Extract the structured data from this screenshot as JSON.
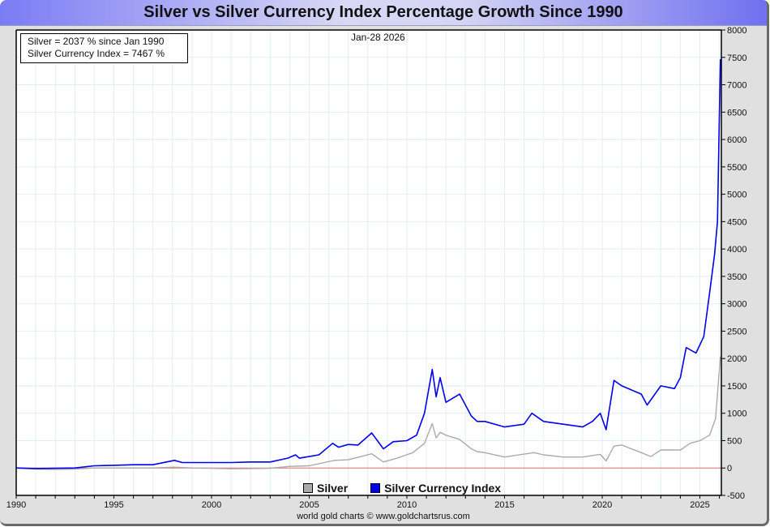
{
  "header": {
    "title": "Silver vs Silver Currency Index Percentage Growth Since 1990"
  },
  "info_box": {
    "line1": "Silver = 2037 % since Jan 1990",
    "line2": "Silver Currency Index = 7467 %"
  },
  "date_label": "Jan-28  2026",
  "credit": "world gold charts © www.goldchartsrus.com",
  "colors": {
    "silver": "#aaaaaa",
    "index": "#0000ee",
    "zero_line": "#e07070",
    "grid": "#e2eef8"
  },
  "chart_data": {
    "type": "line",
    "title": "Silver vs Silver Currency Index Percentage Growth Since 1990",
    "xlabel": "",
    "ylabel": "",
    "xlim": [
      1990,
      2026.1
    ],
    "ylim": [
      -500,
      8000
    ],
    "grid": true,
    "legend_position": "bottom-center",
    "x_ticks": [
      "1990",
      "1995",
      "2000",
      "2005",
      "2010",
      "2015",
      "2020",
      "2025"
    ],
    "y_ticks": [
      "-500",
      "0",
      "500",
      "1000",
      "1500",
      "2000",
      "2500",
      "3000",
      "3500",
      "4000",
      "4500",
      "5000",
      "5500",
      "6000",
      "6500",
      "7000",
      "7500",
      "8000"
    ],
    "series": [
      {
        "name": "Silver",
        "color": "#aaaaaa",
        "points": [
          [
            1990,
            0
          ],
          [
            1991,
            -20
          ],
          [
            1992,
            -25
          ],
          [
            1993,
            -20
          ],
          [
            1994,
            0
          ],
          [
            1995,
            0
          ],
          [
            1996,
            0
          ],
          [
            1997,
            0
          ],
          [
            1998.1,
            15
          ],
          [
            1999,
            0
          ],
          [
            2000,
            -5
          ],
          [
            2001,
            -15
          ],
          [
            2002,
            -10
          ],
          [
            2003,
            -5
          ],
          [
            2004,
            30
          ],
          [
            2005,
            40
          ],
          [
            2006.3,
            140
          ],
          [
            2007,
            150
          ],
          [
            2008.2,
            260
          ],
          [
            2008.8,
            110
          ],
          [
            2009.5,
            180
          ],
          [
            2010.3,
            280
          ],
          [
            2010.9,
            450
          ],
          [
            2011.3,
            810
          ],
          [
            2011.5,
            550
          ],
          [
            2011.7,
            650
          ],
          [
            2012,
            600
          ],
          [
            2012.7,
            520
          ],
          [
            2013.3,
            350
          ],
          [
            2013.6,
            300
          ],
          [
            2014,
            280
          ],
          [
            2015,
            200
          ],
          [
            2016.5,
            280
          ],
          [
            2017,
            240
          ],
          [
            2018,
            200
          ],
          [
            2019,
            200
          ],
          [
            2019.9,
            250
          ],
          [
            2020.2,
            130
          ],
          [
            2020.6,
            400
          ],
          [
            2021,
            420
          ],
          [
            2022,
            280
          ],
          [
            2022.5,
            210
          ],
          [
            2023,
            330
          ],
          [
            2024,
            330
          ],
          [
            2024.5,
            450
          ],
          [
            2025,
            500
          ],
          [
            2025.5,
            600
          ],
          [
            2025.8,
            900
          ],
          [
            2026.05,
            2037
          ]
        ]
      },
      {
        "name": "Silver Currency Index",
        "color": "#0000ee",
        "points": [
          [
            1990,
            0
          ],
          [
            1991,
            -10
          ],
          [
            1992,
            -5
          ],
          [
            1993,
            0
          ],
          [
            1994,
            40
          ],
          [
            1995,
            50
          ],
          [
            1996,
            60
          ],
          [
            1997,
            60
          ],
          [
            1998.1,
            140
          ],
          [
            1998.5,
            100
          ],
          [
            1999,
            100
          ],
          [
            2000,
            100
          ],
          [
            2001,
            100
          ],
          [
            2002,
            110
          ],
          [
            2003,
            110
          ],
          [
            2003.9,
            180
          ],
          [
            2004.3,
            240
          ],
          [
            2004.5,
            180
          ],
          [
            2005,
            210
          ],
          [
            2005.5,
            240
          ],
          [
            2006.2,
            450
          ],
          [
            2006.5,
            380
          ],
          [
            2007,
            430
          ],
          [
            2007.5,
            420
          ],
          [
            2008.2,
            640
          ],
          [
            2008.8,
            350
          ],
          [
            2009.3,
            480
          ],
          [
            2010,
            500
          ],
          [
            2010.5,
            600
          ],
          [
            2010.9,
            1000
          ],
          [
            2011.3,
            1800
          ],
          [
            2011.5,
            1300
          ],
          [
            2011.7,
            1650
          ],
          [
            2012,
            1200
          ],
          [
            2012.7,
            1350
          ],
          [
            2013.3,
            950
          ],
          [
            2013.6,
            850
          ],
          [
            2014,
            850
          ],
          [
            2015,
            750
          ],
          [
            2016,
            800
          ],
          [
            2016.4,
            1000
          ],
          [
            2017,
            850
          ],
          [
            2018,
            800
          ],
          [
            2019,
            750
          ],
          [
            2019.5,
            850
          ],
          [
            2019.9,
            1000
          ],
          [
            2020.2,
            700
          ],
          [
            2020.6,
            1600
          ],
          [
            2021,
            1500
          ],
          [
            2022,
            1350
          ],
          [
            2022.3,
            1150
          ],
          [
            2023,
            1500
          ],
          [
            2023.7,
            1450
          ],
          [
            2024,
            1650
          ],
          [
            2024.3,
            2200
          ],
          [
            2024.8,
            2100
          ],
          [
            2025.2,
            2400
          ],
          [
            2025.5,
            3200
          ],
          [
            2025.75,
            3900
          ],
          [
            2025.9,
            4500
          ],
          [
            2026.0,
            6500
          ],
          [
            2026.05,
            7467
          ]
        ]
      }
    ]
  }
}
